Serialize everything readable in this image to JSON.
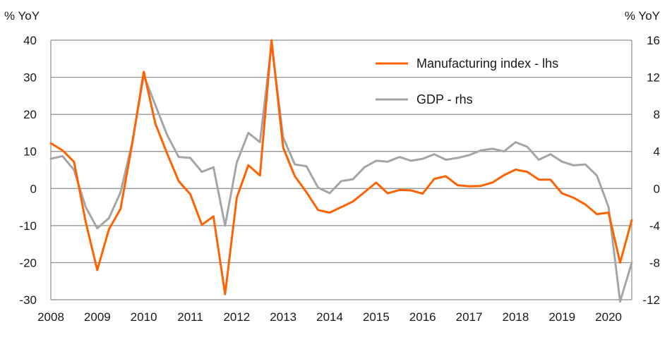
{
  "chart_data": {
    "type": "line",
    "title": "",
    "left_axis_unit": "% YoY",
    "right_axis_unit": "% YoY",
    "left_axis": {
      "range": [
        -30,
        40
      ],
      "ticks": [
        "40",
        "30",
        "20",
        "10",
        "0",
        "-10",
        "-20",
        "-30"
      ],
      "tick_values": [
        40,
        30,
        20,
        10,
        0,
        -10,
        -20,
        -30
      ]
    },
    "right_axis": {
      "range": [
        -12,
        16
      ],
      "ticks": [
        "16",
        "12",
        "8",
        "4",
        "0",
        "-4",
        "-8",
        "-12"
      ],
      "tick_values": [
        16,
        12,
        8,
        4,
        0,
        -4,
        -8,
        -12
      ]
    },
    "x_axis": {
      "range": [
        2008,
        2020.5
      ],
      "ticks": [
        "2008",
        "2009",
        "2010",
        "2011",
        "2012",
        "2013",
        "2014",
        "2015",
        "2016",
        "2017",
        "2018",
        "2019",
        "2020"
      ],
      "tick_values": [
        2008,
        2009,
        2010,
        2011,
        2012,
        2013,
        2014,
        2015,
        2016,
        2017,
        2018,
        2019,
        2020
      ]
    },
    "grid": "horizontal",
    "legend_position": "top-right",
    "x": [
      2008.0,
      2008.25,
      2008.5,
      2008.75,
      2009.0,
      2009.25,
      2009.5,
      2009.75,
      2010.0,
      2010.25,
      2010.5,
      2010.75,
      2011.0,
      2011.25,
      2011.5,
      2011.75,
      2012.0,
      2012.25,
      2012.5,
      2012.75,
      2013.0,
      2013.25,
      2013.5,
      2013.75,
      2014.0,
      2014.25,
      2014.5,
      2014.75,
      2015.0,
      2015.25,
      2015.5,
      2015.75,
      2016.0,
      2016.25,
      2016.5,
      2016.75,
      2017.0,
      2017.25,
      2017.5,
      2017.75,
      2018.0,
      2018.25,
      2018.5,
      2018.75,
      2019.0,
      2019.25,
      2019.5,
      2019.75,
      2020.0,
      2020.25,
      2020.5
    ],
    "series": [
      {
        "name": "Manufacturing index - lhs",
        "axis": "left",
        "color": "#ff6200",
        "values": [
          12.2,
          10.3,
          7.2,
          -9.0,
          -22.0,
          -11.0,
          -5.5,
          12.0,
          31.5,
          17.5,
          9.5,
          2.0,
          -1.5,
          -9.8,
          -7.5,
          -28.5,
          -2.5,
          6.3,
          3.5,
          40.0,
          11.0,
          3.3,
          -1.0,
          -5.8,
          -6.5,
          -5.0,
          -3.5,
          -1.0,
          1.6,
          -1.3,
          -0.4,
          -0.5,
          -1.4,
          2.6,
          3.3,
          0.9,
          0.6,
          0.7,
          1.6,
          3.6,
          5.1,
          4.5,
          2.4,
          2.4,
          -1.3,
          -2.5,
          -4.3,
          -6.9,
          -6.5,
          -20.0,
          -8.5
        ]
      },
      {
        "name": "GDP - rhs",
        "axis": "right",
        "color": "#a5a5a5",
        "values": [
          3.2,
          3.5,
          2.0,
          -2.0,
          -4.3,
          -3.2,
          -0.4,
          4.9,
          12.2,
          9.0,
          5.8,
          3.4,
          3.3,
          1.8,
          2.3,
          -4.0,
          2.8,
          6.0,
          5.0,
          15.6,
          5.5,
          2.6,
          2.4,
          0.1,
          -0.5,
          0.8,
          1.0,
          2.3,
          3.0,
          2.9,
          3.4,
          3.0,
          3.2,
          3.7,
          3.1,
          3.3,
          3.6,
          4.1,
          4.3,
          4.0,
          5.0,
          4.5,
          3.1,
          3.7,
          2.9,
          2.5,
          2.6,
          1.4,
          -2.0,
          -12.2,
          -8.0
        ]
      }
    ]
  }
}
